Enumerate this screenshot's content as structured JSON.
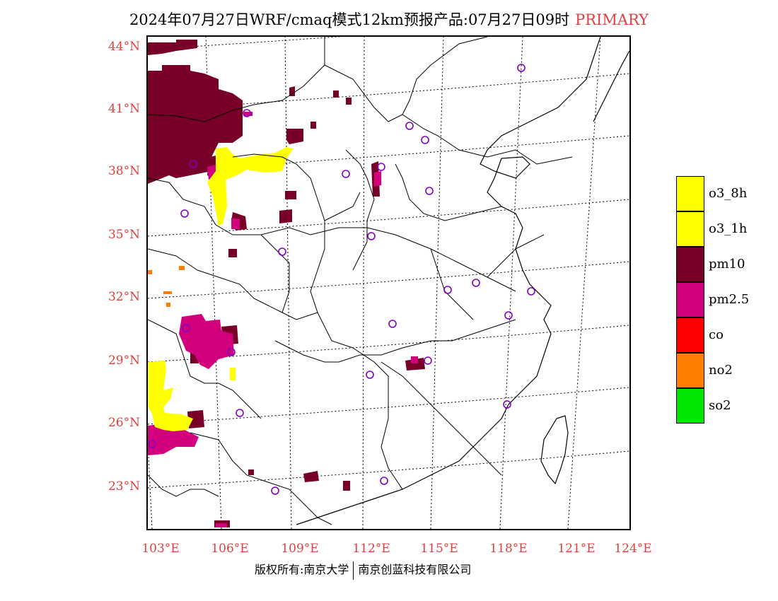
{
  "header": {
    "title": "2024年07月27日WRF/cmaq模式12km预报产品:07月27日09时",
    "mode": "PRIMARY"
  },
  "axes": {
    "lat_labels": [
      "44°N",
      "41°N",
      "38°N",
      "35°N",
      "32°N",
      "29°N",
      "26°N",
      "23°N"
    ],
    "lon_labels": [
      "103°E",
      "106°E",
      "109°E",
      "112°E",
      "115°E",
      "118°E",
      "121°E",
      "124°E"
    ]
  },
  "legend": {
    "items": [
      {
        "label": "o3_8h",
        "color": "#ffff00"
      },
      {
        "label": "o3_1h",
        "color": "#ffff00"
      },
      {
        "label": "pm10",
        "color": "#780028"
      },
      {
        "label": "pm2.5",
        "color": "#d2007d"
      },
      {
        "label": "co",
        "color": "#ff0000"
      },
      {
        "label": "no2",
        "color": "#ff7d00"
      },
      {
        "label": "so2",
        "color": "#00e600"
      }
    ]
  },
  "footer": {
    "left": "版权所有:南京大学",
    "right": "南京创蓝科技有限公司"
  },
  "colors": {
    "accent_red": "#e04040",
    "station_marker": "#8000c0"
  }
}
